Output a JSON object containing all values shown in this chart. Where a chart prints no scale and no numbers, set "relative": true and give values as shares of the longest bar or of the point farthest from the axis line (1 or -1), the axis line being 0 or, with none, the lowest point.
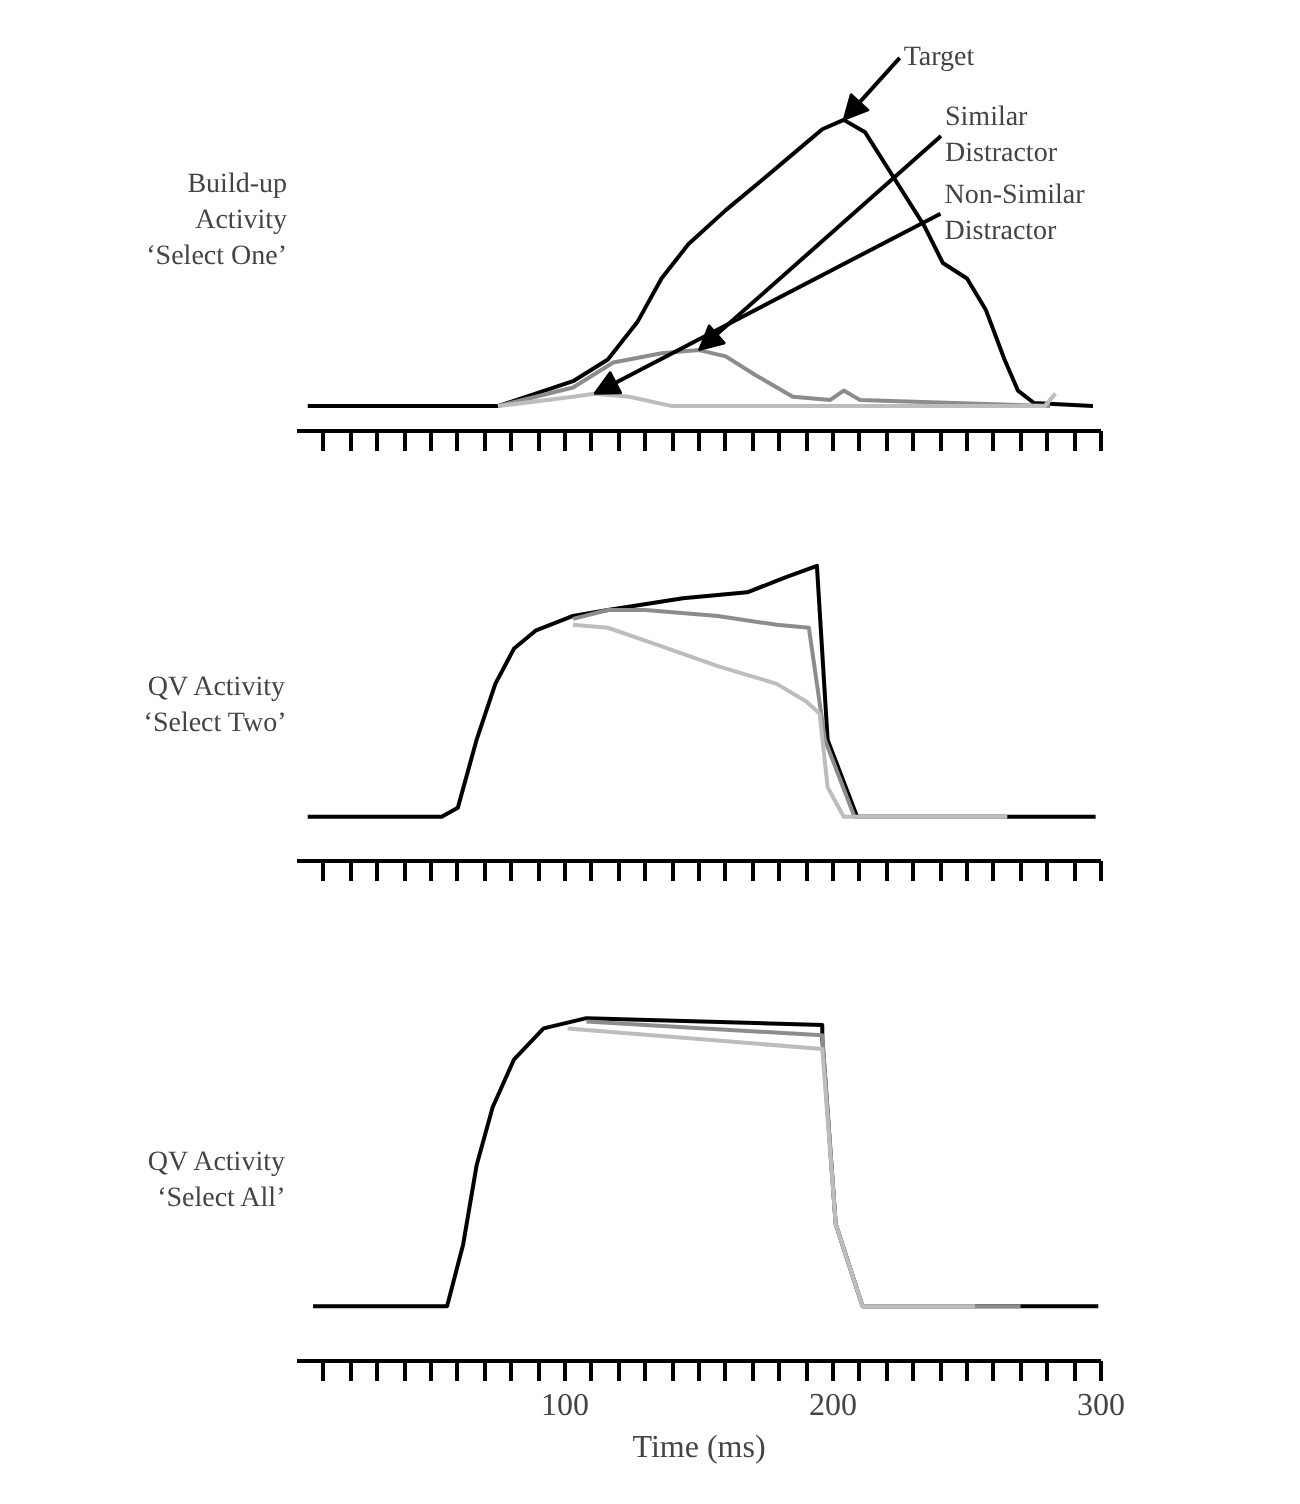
{
  "chart_data": [
    {
      "type": "line",
      "relative": true,
      "ylabel": "Build-up\nActivity\n‘Select One’",
      "xlim": [
        0,
        300
      ],
      "xticks": [
        {
          "value": 10,
          "label": null
        },
        {
          "value": 20,
          "label": null
        },
        {
          "value": 30,
          "label": null
        },
        {
          "value": 40,
          "label": null
        },
        {
          "value": 50,
          "label": null
        },
        {
          "value": 60,
          "label": null
        },
        {
          "value": 70,
          "label": null
        },
        {
          "value": 80,
          "label": null
        },
        {
          "value": 90,
          "label": null
        },
        100,
        {
          "value": 110,
          "label": null
        },
        {
          "value": 120,
          "label": null
        },
        {
          "value": 130,
          "label": null
        },
        {
          "value": 140,
          "label": null
        },
        {
          "value": 150,
          "label": null
        },
        {
          "value": 160,
          "label": null
        },
        {
          "value": 170,
          "label": null
        },
        {
          "value": 180,
          "label": null
        },
        {
          "value": 190,
          "label": null
        },
        200,
        {
          "value": 210,
          "label": null
        },
        {
          "value": 220,
          "label": null
        },
        {
          "value": 230,
          "label": null
        },
        {
          "value": 240,
          "label": null
        },
        {
          "value": 250,
          "label": null
        },
        {
          "value": 260,
          "label": null
        },
        {
          "value": 270,
          "label": null
        },
        {
          "value": 280,
          "label": null
        },
        {
          "value": 290,
          "label": null
        },
        300
      ],
      "tick_labels": false,
      "grid": false,
      "series": [
        {
          "color": "#000000",
          "x": [
            4,
            75,
            103,
            116,
            127,
            136,
            146,
            160,
            174,
            185,
            196,
            204,
            212,
            223,
            234,
            241,
            250,
            257,
            264,
            269,
            275,
            297
          ],
          "values": [
            0.08,
            0.08,
            0.16,
            0.23,
            0.35,
            0.49,
            0.6,
            0.71,
            0.81,
            0.89,
            0.97,
            1.0,
            0.96,
            0.81,
            0.66,
            0.54,
            0.49,
            0.39,
            0.23,
            0.13,
            0.09,
            0.08
          ]
        },
        {
          "color": "#8c8c8c",
          "x": [
            75,
            103,
            118,
            136,
            150,
            160,
            171,
            185,
            199,
            204,
            210,
            281
          ],
          "values": [
            0.08,
            0.14,
            0.22,
            0.25,
            0.26,
            0.24,
            0.18,
            0.11,
            0.1,
            0.13,
            0.1,
            0.08
          ]
        },
        {
          "color": "#bdbdbd",
          "x": [
            75,
            103,
            111,
            124,
            140,
            279,
            283
          ],
          "values": [
            0.08,
            0.11,
            0.12,
            0.11,
            0.08,
            0.08,
            0.12
          ]
        }
      ],
      "annotations": [
        {
          "text": "Target",
          "x": 204,
          "y": 1.0
        },
        {
          "text": "Similar\nDistractor",
          "x": 150,
          "y": 0.26
        },
        {
          "text": "Non-Similar\nDistractor",
          "x": 111,
          "y": 0.12
        }
      ]
    },
    {
      "type": "line",
      "relative": true,
      "ylabel": "QV Activity\n‘Select Two’",
      "xlim": [
        0,
        300
      ],
      "xticks": [
        {
          "value": 10,
          "label": null
        },
        {
          "value": 20,
          "label": null
        },
        {
          "value": 30,
          "label": null
        },
        {
          "value": 40,
          "label": null
        },
        {
          "value": 50,
          "label": null
        },
        {
          "value": 60,
          "label": null
        },
        {
          "value": 70,
          "label": null
        },
        {
          "value": 80,
          "label": null
        },
        {
          "value": 90,
          "label": null
        },
        100,
        {
          "value": 110,
          "label": null
        },
        {
          "value": 120,
          "label": null
        },
        {
          "value": 130,
          "label": null
        },
        {
          "value": 140,
          "label": null
        },
        {
          "value": 150,
          "label": null
        },
        {
          "value": 160,
          "label": null
        },
        {
          "value": 170,
          "label": null
        },
        {
          "value": 180,
          "label": null
        },
        {
          "value": 190,
          "label": null
        },
        200,
        {
          "value": 210,
          "label": null
        },
        {
          "value": 220,
          "label": null
        },
        {
          "value": 230,
          "label": null
        },
        {
          "value": 240,
          "label": null
        },
        {
          "value": 250,
          "label": null
        },
        {
          "value": 260,
          "label": null
        },
        {
          "value": 270,
          "label": null
        },
        {
          "value": 280,
          "label": null
        },
        {
          "value": 290,
          "label": null
        },
        300
      ],
      "tick_labels": false,
      "grid": false,
      "series": [
        {
          "color": "#000000",
          "x": [
            4,
            54,
            60,
            67,
            74,
            81,
            89,
            103,
            116,
            144,
            168,
            182,
            194,
            198,
            209,
            298
          ],
          "values": [
            0.15,
            0.15,
            0.18,
            0.41,
            0.6,
            0.72,
            0.78,
            0.83,
            0.85,
            0.89,
            0.91,
            0.96,
            1.0,
            0.41,
            0.15,
            0.15
          ]
        },
        {
          "color": "#8c8c8c",
          "x": [
            103,
            116,
            130,
            157,
            179,
            191,
            197,
            208,
            265
          ],
          "values": [
            0.82,
            0.85,
            0.85,
            0.83,
            0.8,
            0.79,
            0.41,
            0.15,
            0.15
          ]
        },
        {
          "color": "#bdbdbd",
          "x": [
            103,
            116,
            135,
            157,
            179,
            190,
            195,
            198,
            204,
            265
          ],
          "values": [
            0.8,
            0.79,
            0.73,
            0.66,
            0.6,
            0.54,
            0.5,
            0.25,
            0.15,
            0.15
          ]
        }
      ]
    },
    {
      "type": "line",
      "relative": true,
      "ylabel": "QV Activity\n‘Select All’",
      "xlabel": "Time (ms)",
      "xlim": [
        0,
        300
      ],
      "xticks": [
        {
          "value": 10,
          "label": null
        },
        {
          "value": 20,
          "label": null
        },
        {
          "value": 30,
          "label": null
        },
        {
          "value": 40,
          "label": null
        },
        {
          "value": 50,
          "label": null
        },
        {
          "value": 60,
          "label": null
        },
        {
          "value": 70,
          "label": null
        },
        {
          "value": 80,
          "label": null
        },
        {
          "value": 90,
          "label": null
        },
        100,
        {
          "value": 110,
          "label": null
        },
        {
          "value": 120,
          "label": null
        },
        {
          "value": 130,
          "label": null
        },
        {
          "value": 140,
          "label": null
        },
        {
          "value": 150,
          "label": null
        },
        {
          "value": 160,
          "label": null
        },
        {
          "value": 170,
          "label": null
        },
        {
          "value": 180,
          "label": null
        },
        {
          "value": 190,
          "label": null
        },
        200,
        {
          "value": 210,
          "label": null
        },
        {
          "value": 220,
          "label": null
        },
        {
          "value": 230,
          "label": null
        },
        {
          "value": 240,
          "label": null
        },
        {
          "value": 250,
          "label": null
        },
        {
          "value": 260,
          "label": null
        },
        {
          "value": 270,
          "label": null
        },
        {
          "value": 280,
          "label": null
        },
        {
          "value": 290,
          "label": null
        },
        300
      ],
      "tick_labels": "x",
      "grid": false,
      "series": [
        {
          "color": "#000000",
          "x": [
            6,
            56,
            62,
            67,
            73,
            81,
            92,
            108,
            196,
            196,
            201,
            211,
            299
          ],
          "values": [
            0.16,
            0.16,
            0.34,
            0.57,
            0.74,
            0.88,
            0.97,
            1.0,
            0.98,
            0.94,
            0.4,
            0.16,
            0.16
          ]
        },
        {
          "color": "#8c8c8c",
          "x": [
            108,
            196,
            201,
            211,
            270
          ],
          "values": [
            0.99,
            0.95,
            0.4,
            0.16,
            0.16
          ]
        },
        {
          "color": "#bdbdbd",
          "x": [
            101,
            196,
            201,
            211,
            253
          ],
          "values": [
            0.97,
            0.91,
            0.4,
            0.16,
            0.16
          ]
        }
      ]
    }
  ]
}
